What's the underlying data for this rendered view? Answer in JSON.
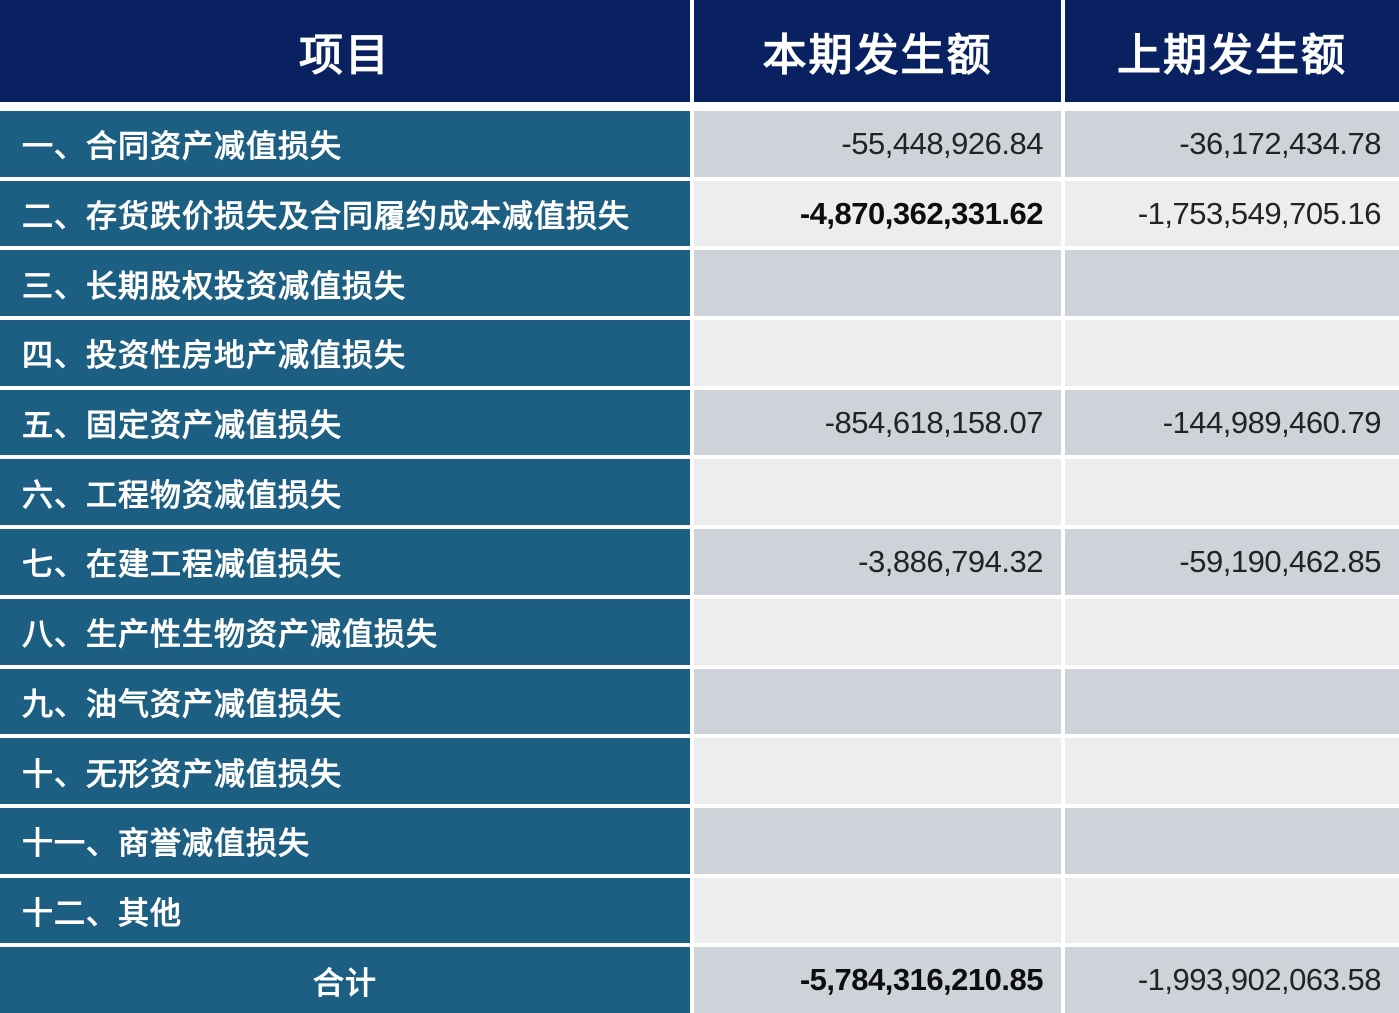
{
  "table": {
    "columns": [
      "项目",
      "本期发生额",
      "上期发生额"
    ],
    "rows": [
      {
        "label": "一、合同资产减值损失",
        "current": "-55,448,926.84",
        "prior": "-36,172,434.78",
        "bold_current": false
      },
      {
        "label": "二、存货跌价损失及合同履约成本减值损失",
        "current": "-4,870,362,331.62",
        "prior": "-1,753,549,705.16",
        "bold_current": true
      },
      {
        "label": "三、长期股权投资减值损失",
        "current": "",
        "prior": "",
        "bold_current": false
      },
      {
        "label": "四、投资性房地产减值损失",
        "current": "",
        "prior": "",
        "bold_current": false
      },
      {
        "label": "五、固定资产减值损失",
        "current": "-854,618,158.07",
        "prior": "-144,989,460.79",
        "bold_current": false
      },
      {
        "label": "六、工程物资减值损失",
        "current": "",
        "prior": "",
        "bold_current": false
      },
      {
        "label": "七、在建工程减值损失",
        "current": "-3,886,794.32",
        "prior": "-59,190,462.85",
        "bold_current": false
      },
      {
        "label": "八、生产性生物资产减值损失",
        "current": "",
        "prior": "",
        "bold_current": false
      },
      {
        "label": "九、油气资产减值损失",
        "current": "",
        "prior": "",
        "bold_current": false
      },
      {
        "label": "十、无形资产减值损失",
        "current": "",
        "prior": "",
        "bold_current": false
      },
      {
        "label": "十一、商誉减值损失",
        "current": "",
        "prior": "",
        "bold_current": false
      },
      {
        "label": "十二、其他",
        "current": "",
        "prior": "",
        "bold_current": false
      }
    ],
    "total": {
      "label": "合计",
      "current": "-5,784,316,210.85",
      "prior": "-1,993,902,063.58"
    }
  },
  "colors": {
    "header_bg": "#0a2161",
    "label_bg": "#1c5f82",
    "cell_dark": "#ced3d9",
    "cell_light": "#ebedef",
    "separator": "#ffffff",
    "header_text": "#ffffff",
    "number_text": "#222325"
  }
}
